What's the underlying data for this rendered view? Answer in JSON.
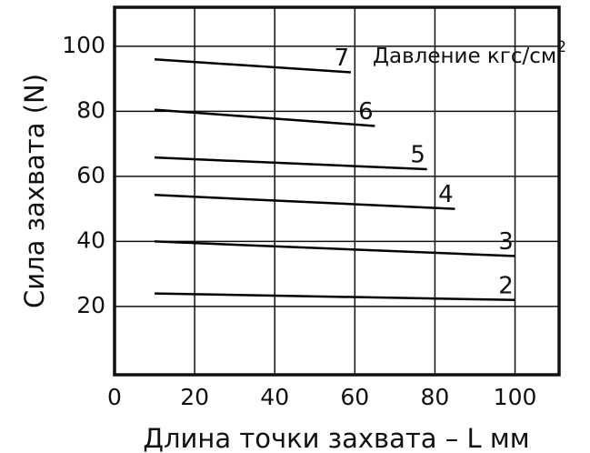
{
  "chart_data": {
    "type": "line",
    "x_label": "Длина точки захвата – L мм",
    "y_label": "Сила захвата (N)",
    "annotation": {
      "text": "Давление кгс/см",
      "sup": "2"
    },
    "series": [
      {
        "name": "7",
        "color": "#000000",
        "x": [
          10,
          59
        ],
        "values": [
          96,
          92
        ]
      },
      {
        "name": "6",
        "color": "#000000",
        "x": [
          10,
          65
        ],
        "values": [
          80.5,
          75.5
        ]
      },
      {
        "name": "5",
        "color": "#000000",
        "x": [
          10,
          78
        ],
        "values": [
          65.8,
          62.2
        ]
      },
      {
        "name": "4",
        "color": "#000000",
        "x": [
          10,
          85
        ],
        "values": [
          54.3,
          50
        ]
      },
      {
        "name": "3",
        "color": "#000000",
        "x": [
          10,
          100
        ],
        "values": [
          40,
          35.5
        ]
      },
      {
        "name": "2",
        "color": "#000000",
        "x": [
          10,
          100
        ],
        "values": [
          24,
          22
        ]
      }
    ],
    "xlim": [
      0,
      111
    ],
    "xticks": [
      0,
      20,
      40,
      60,
      80,
      100
    ],
    "ylim": [
      -1,
      112
    ],
    "yticks": [
      20,
      40,
      60,
      80,
      100
    ],
    "grid": true
  }
}
